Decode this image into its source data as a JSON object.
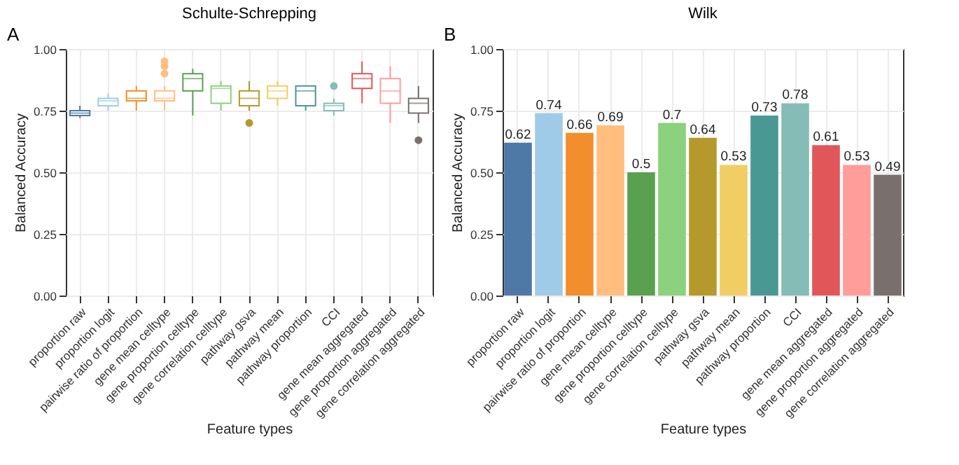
{
  "chart_data": [
    {
      "type": "box",
      "title": "Schulte-Schrepping",
      "xlabel": "Feature types",
      "ylabel": "Balanced Accuracy",
      "annotations": [
        "A"
      ],
      "categories": [
        "proportion raw",
        "proportion logit",
        "pairwise ratio of proportion",
        "gene mean celltype",
        "gene proportion celltype",
        "gene correlation celltype",
        "pathway gsva",
        "pathway mean",
        "pathway proportion",
        "CCI",
        "gene mean aggregated",
        "gene proportion aggregated",
        "gene correlation aggregated"
      ],
      "colors": [
        "#4e79a7",
        "#a0cbe8",
        "#f28e2b",
        "#ffbe7d",
        "#59a14f",
        "#8cd17d",
        "#b6992d",
        "#f1ce63",
        "#499894",
        "#86bcb6",
        "#e15759",
        "#ff9d9a",
        "#79706e"
      ],
      "boxes": [
        {
          "low": 0.72,
          "q1": 0.73,
          "median": 0.74,
          "q3": 0.75,
          "high": 0.77
        },
        {
          "low": 0.75,
          "q1": 0.77,
          "median": 0.79,
          "q3": 0.8,
          "high": 0.82
        },
        {
          "low": 0.75,
          "q1": 0.79,
          "median": 0.8,
          "q3": 0.83,
          "high": 0.85
        },
        {
          "low": 0.75,
          "q1": 0.79,
          "median": 0.8,
          "q3": 0.83,
          "high": 0.85,
          "outliers": [
            0.9,
            0.93,
            0.95
          ]
        },
        {
          "low": 0.73,
          "q1": 0.83,
          "median": 0.88,
          "q3": 0.9,
          "high": 0.92
        },
        {
          "low": 0.75,
          "q1": 0.78,
          "median": 0.84,
          "q3": 0.85,
          "high": 0.87
        },
        {
          "low": 0.75,
          "q1": 0.77,
          "median": 0.8,
          "q3": 0.83,
          "high": 0.87,
          "outliers": [
            0.7
          ]
        },
        {
          "low": 0.77,
          "q1": 0.8,
          "median": 0.83,
          "q3": 0.85,
          "high": 0.87
        },
        {
          "low": 0.75,
          "q1": 0.77,
          "median": 0.83,
          "q3": 0.85,
          "high": 0.85
        },
        {
          "low": 0.73,
          "q1": 0.75,
          "median": 0.77,
          "q3": 0.78,
          "high": 0.8,
          "outliers": [
            0.85
          ]
        },
        {
          "low": 0.78,
          "q1": 0.84,
          "median": 0.88,
          "q3": 0.9,
          "high": 0.95
        },
        {
          "low": 0.7,
          "q1": 0.78,
          "median": 0.83,
          "q3": 0.88,
          "high": 0.93
        },
        {
          "low": 0.7,
          "q1": 0.74,
          "median": 0.78,
          "q3": 0.8,
          "high": 0.85,
          "outliers": [
            0.63
          ]
        }
      ],
      "ylim": [
        0,
        1
      ],
      "yticks": [
        {
          "value": 0,
          "label": "0.00"
        },
        {
          "value": 0.25,
          "label": "0.25"
        },
        {
          "value": 0.5,
          "label": "0.50"
        },
        {
          "value": 0.75,
          "label": "0.75"
        },
        {
          "value": 1,
          "label": "1.00"
        }
      ],
      "grid": true
    },
    {
      "type": "bar",
      "title": "Wilk",
      "xlabel": "Feature types",
      "ylabel": "Balanced Accuracy",
      "annotations": [
        "B"
      ],
      "categories": [
        "proportion raw",
        "proportion logit",
        "pairwise ratio of proportion",
        "gene mean celltype",
        "gene proportion celltype",
        "gene correlation celltype",
        "pathway gsva",
        "pathway mean",
        "pathway proportion",
        "CCI",
        "gene mean aggregated",
        "gene proportion aggregated",
        "gene correlation aggregated"
      ],
      "values": [
        0.62,
        0.74,
        0.66,
        0.69,
        0.5,
        0.7,
        0.64,
        0.53,
        0.73,
        0.78,
        0.61,
        0.53,
        0.49
      ],
      "colors": [
        "#4e79a7",
        "#a0cbe8",
        "#f28e2b",
        "#ffbe7d",
        "#59a14f",
        "#8cd17d",
        "#b6992d",
        "#f1ce63",
        "#499894",
        "#86bcb6",
        "#e15759",
        "#ff9d9a",
        "#79706e"
      ],
      "data_labels": true,
      "ylim": [
        0,
        1
      ],
      "yticks": [
        {
          "value": 0,
          "label": "0.00"
        },
        {
          "value": 0.25,
          "label": "0.25"
        },
        {
          "value": 0.5,
          "label": "0.50"
        },
        {
          "value": 0.75,
          "label": "0.75"
        },
        {
          "value": 1,
          "label": "1.00"
        }
      ],
      "grid": true
    }
  ]
}
